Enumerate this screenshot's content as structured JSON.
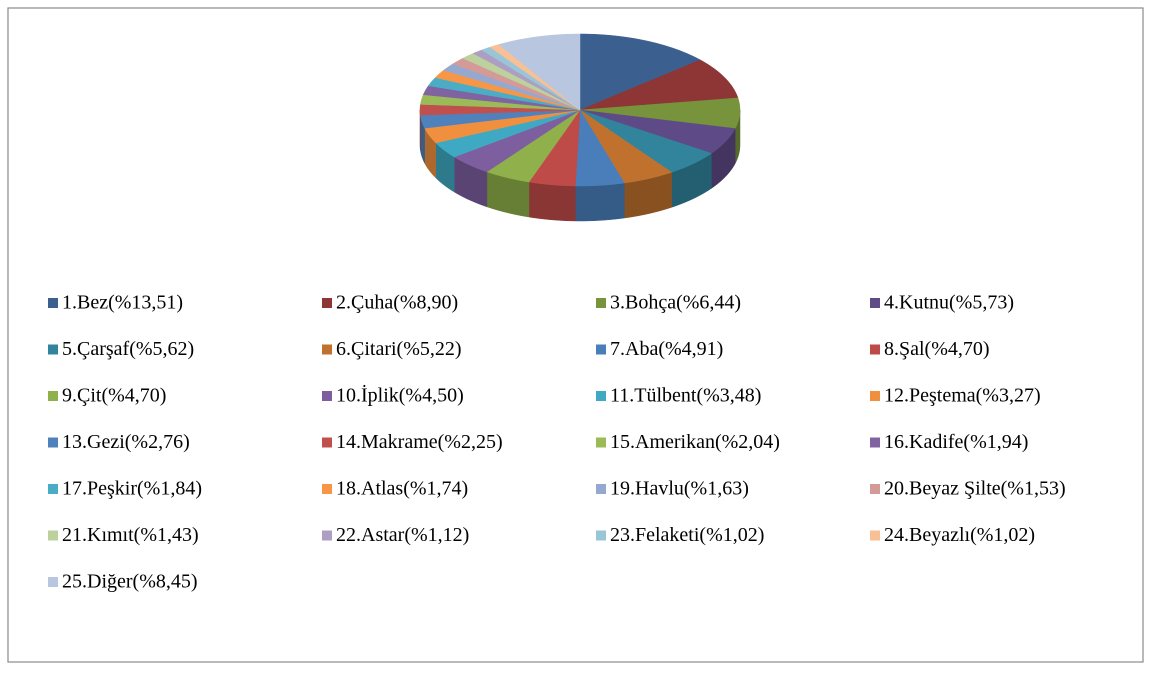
{
  "chart_data": {
    "type": "pie",
    "three_d": true,
    "categories": [
      "1.Bez(%13,51)",
      "2.Çuha(%8,90)",
      "3.Bohça(%6,44)",
      "4.Kutnu(%5,73)",
      "5.Çarşaf(%5,62)",
      "6.Çitari(%5,22)",
      "7.Aba(%4,91)",
      "8.Şal(%4,70)",
      "9.Çit(%4,70)",
      "10.İplik(%4,50)",
      "11.Tülbent(%3,48)",
      "12.Peştema(%3,27)",
      "13.Gezi(%2,76)",
      "14.Makrame(%2,25)",
      "15.Amerikan(%2,04)",
      "16.Kadife(%1,94)",
      "17.Peşkir(%1,84)",
      "18.Atlas(%1,74)",
      "19.Havlu(%1,63)",
      "20.Beyaz Şilte(%1,53)",
      "21.Kımıt(%1,43)",
      "22.Astar(%1,12)",
      "23.Felaketi(%1,02)",
      "24.Beyazlı(%1,02)",
      "25.Diğer(%8,45)"
    ],
    "values": [
      13.51,
      8.9,
      6.44,
      5.73,
      5.62,
      5.22,
      4.91,
      4.7,
      4.7,
      4.5,
      3.48,
      3.27,
      2.76,
      2.25,
      2.04,
      1.94,
      1.84,
      1.74,
      1.63,
      1.53,
      1.43,
      1.12,
      1.02,
      1.02,
      8.45
    ],
    "colors": [
      "#3b5f8f",
      "#8e3535",
      "#77933c",
      "#5e4a86",
      "#31849b",
      "#c0712d",
      "#4a7ebb",
      "#be4b48",
      "#8fb04a",
      "#7d5fa0",
      "#3fa9c4",
      "#f0903f",
      "#4f81bd",
      "#c0504d",
      "#9bbb59",
      "#8064a2",
      "#4bacc6",
      "#f79646",
      "#95a9d0",
      "#d49a98",
      "#bcd19c",
      "#ad9fc3",
      "#98c6d6",
      "#f9bf95",
      "#b9c6e0"
    ],
    "legend": "bottom"
  }
}
